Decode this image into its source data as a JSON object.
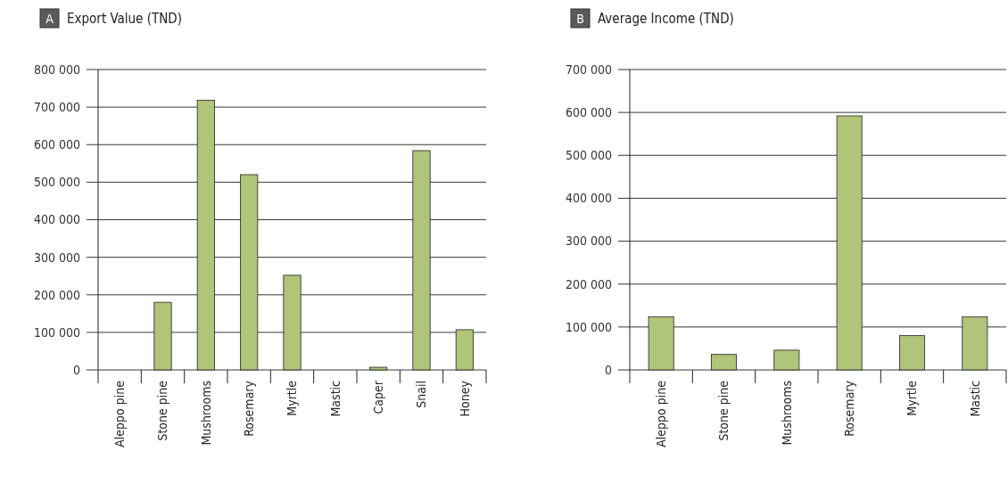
{
  "chart_data": [
    {
      "type": "bar",
      "title": "Export Value (TND)",
      "annotations": [
        "A"
      ],
      "categories": [
        "Aleppo pine",
        "Stone pine",
        "Mushrooms",
        "Rosemary",
        "Myrtle",
        "Mastic",
        "Caper",
        "Snail",
        "Honey"
      ],
      "values": [
        0,
        180000,
        718000,
        520000,
        252000,
        0,
        7000,
        584000,
        107000
      ],
      "color": "#b0c47a",
      "ylim": [
        0,
        800000
      ],
      "yticks": [
        {
          "value": 0,
          "label": "0"
        },
        {
          "value": 100000,
          "label": "100 000"
        },
        {
          "value": 200000,
          "label": "200 000"
        },
        {
          "value": 300000,
          "label": "300 000"
        },
        {
          "value": 400000,
          "label": "400 000"
        },
        {
          "value": 500000,
          "label": "500 000"
        },
        {
          "value": 600000,
          "label": "600 000"
        },
        {
          "value": 700000,
          "label": "700 000"
        },
        {
          "value": 800000,
          "label": "800 000"
        }
      ],
      "grid": "y"
    },
    {
      "type": "bar",
      "title": "Average Income (TND)",
      "annotations": [
        "B"
      ],
      "categories": [
        "Aleppo pine",
        "Stone pine",
        "Mushrooms",
        "Rosemary",
        "Myrtle",
        "Mastic"
      ],
      "values": [
        124000,
        36000,
        46000,
        592000,
        80000,
        124000
      ],
      "color": "#b0c47a",
      "ylim": [
        0,
        700000
      ],
      "yticks": [
        {
          "value": 0,
          "label": "0"
        },
        {
          "value": 100000,
          "label": "100 000"
        },
        {
          "value": 200000,
          "label": "200 000"
        },
        {
          "value": 300000,
          "label": "300 000"
        },
        {
          "value": 400000,
          "label": "400 000"
        },
        {
          "value": 500000,
          "label": "500 000"
        },
        {
          "value": 600000,
          "label": "600 000"
        },
        {
          "value": 700000,
          "label": "700 000"
        }
      ],
      "grid": "y"
    }
  ]
}
